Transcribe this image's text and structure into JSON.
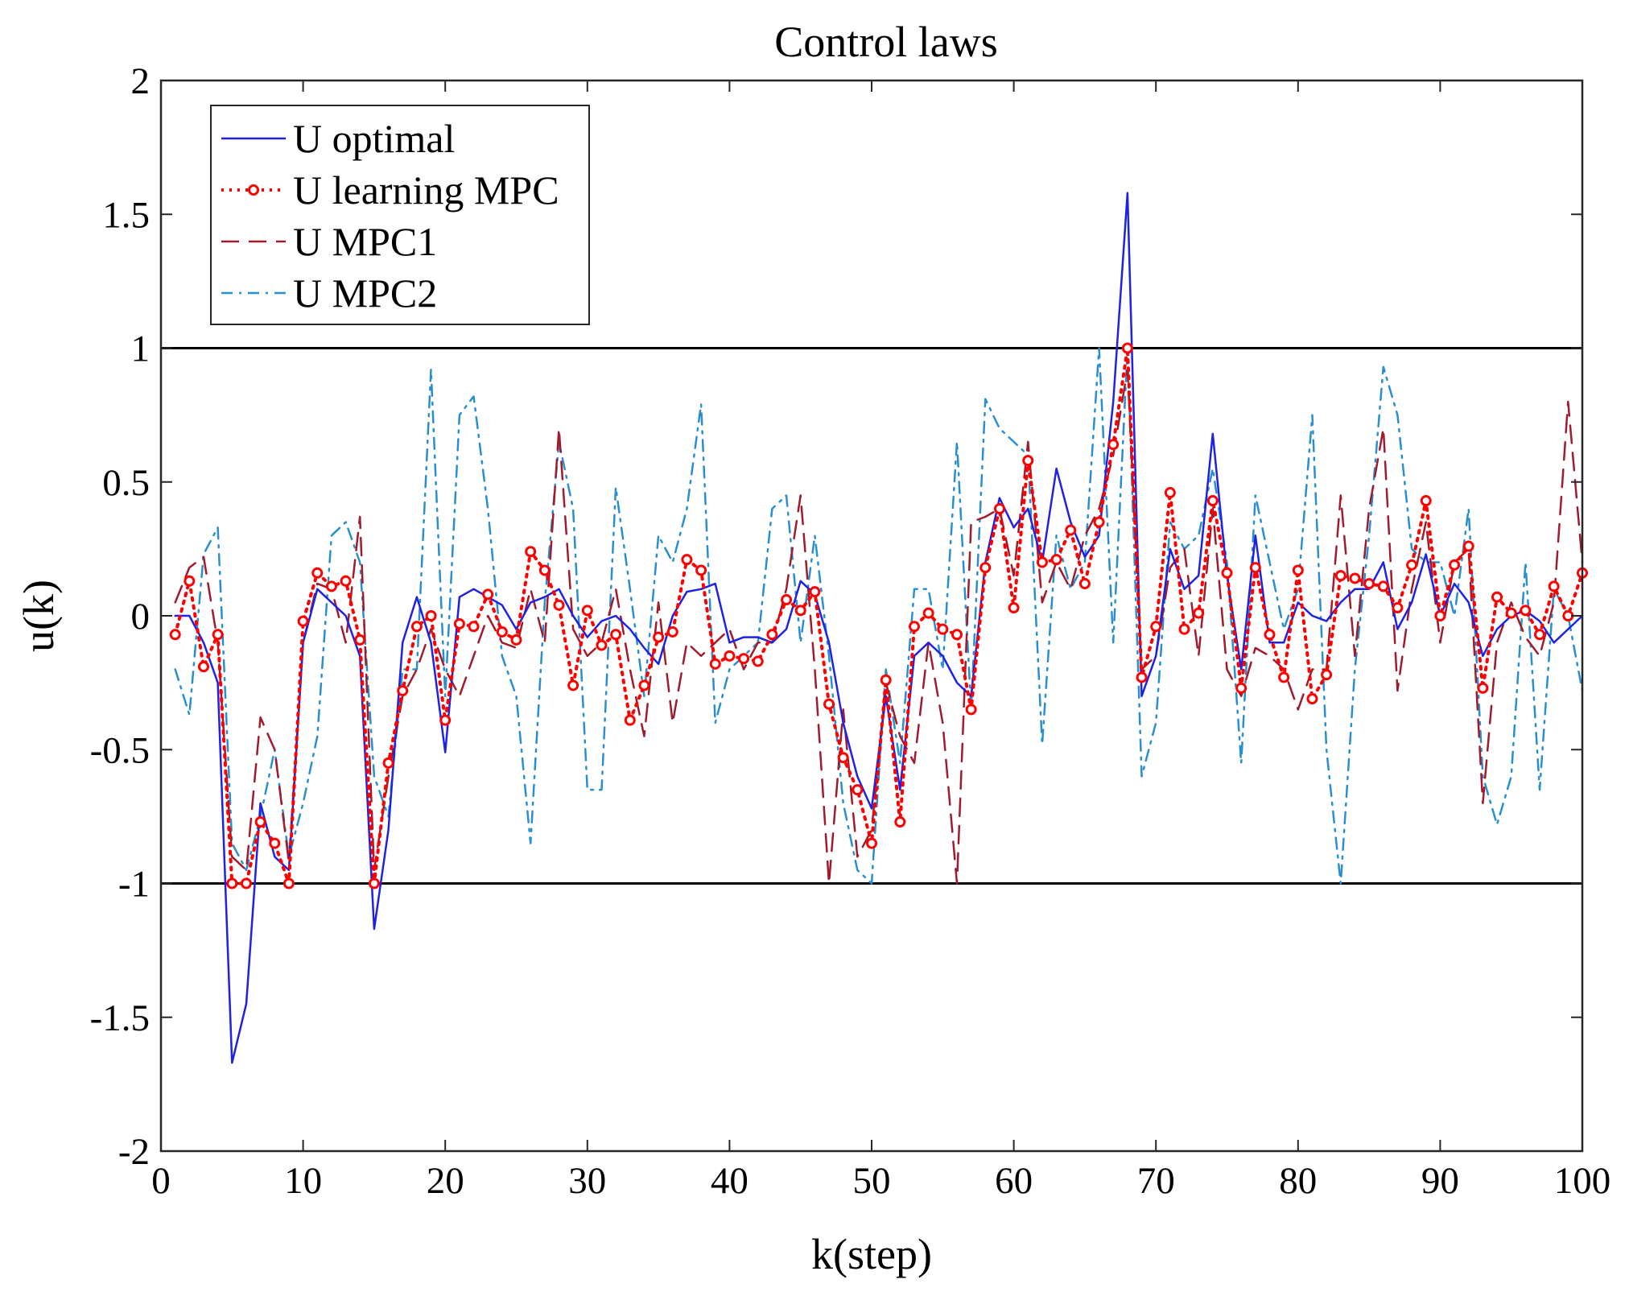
{
  "chart_data": {
    "type": "line",
    "title": "Control laws",
    "xlabel": "k(step)",
    "ylabel": "u(k)",
    "xlim": [
      0,
      100
    ],
    "ylim": [
      -2,
      2
    ],
    "xticks": [
      "0",
      "10",
      "20",
      "30",
      "40",
      "50",
      "60",
      "70",
      "80",
      "90",
      "100"
    ],
    "yticks": [
      "2",
      "1.5",
      "1",
      "0.5",
      "0",
      "-0.5",
      "-1",
      "-1.5",
      "-2"
    ],
    "legend_position": "top-left",
    "reference_lines": [
      {
        "name": "upper bound",
        "y": 1,
        "color": "#000000"
      },
      {
        "name": "lower bound",
        "y": -1,
        "color": "#000000"
      }
    ],
    "x": [
      1,
      2,
      3,
      4,
      5,
      6,
      7,
      8,
      9,
      10,
      11,
      12,
      13,
      14,
      15,
      16,
      17,
      18,
      19,
      20,
      21,
      22,
      23,
      24,
      25,
      26,
      27,
      28,
      29,
      30,
      31,
      32,
      33,
      34,
      35,
      36,
      37,
      38,
      39,
      40,
      41,
      42,
      43,
      44,
      45,
      46,
      47,
      48,
      49,
      50,
      51,
      52,
      53,
      54,
      55,
      56,
      57,
      58,
      59,
      60,
      61,
      62,
      63,
      64,
      65,
      66,
      67,
      68,
      69,
      70,
      71,
      72,
      73,
      74,
      75,
      76,
      77,
      78,
      79,
      80,
      81,
      82,
      83,
      84,
      85,
      86,
      87,
      88,
      89,
      90,
      91,
      92,
      93,
      94,
      95,
      96,
      97,
      98,
      99,
      100
    ],
    "series": [
      {
        "name": "U optimal",
        "color": "#1f22e6",
        "style": "solid",
        "values": [
          0.0,
          0.0,
          -0.1,
          -0.25,
          -1.67,
          -1.45,
          -0.7,
          -0.9,
          -0.95,
          -0.1,
          0.1,
          0.05,
          0.0,
          -0.15,
          -1.17,
          -0.8,
          -0.1,
          0.07,
          -0.1,
          -0.51,
          0.07,
          0.1,
          0.07,
          0.04,
          -0.05,
          0.05,
          0.07,
          0.1,
          0.0,
          -0.08,
          -0.02,
          0.0,
          -0.05,
          -0.12,
          -0.18,
          0.0,
          0.09,
          0.1,
          0.12,
          -0.1,
          -0.08,
          -0.08,
          -0.1,
          -0.05,
          0.13,
          0.08,
          -0.1,
          -0.4,
          -0.6,
          -0.72,
          -0.3,
          -0.65,
          -0.15,
          -0.1,
          -0.15,
          -0.25,
          -0.3,
          0.2,
          0.44,
          0.33,
          0.4,
          0.2,
          0.55,
          0.35,
          0.22,
          0.3,
          0.8,
          1.58,
          -0.3,
          -0.15,
          0.25,
          0.1,
          0.15,
          0.68,
          0.15,
          -0.2,
          0.3,
          -0.1,
          -0.1,
          0.05,
          0.0,
          -0.02,
          0.05,
          0.1,
          0.1,
          0.2,
          -0.05,
          0.05,
          0.23,
          0.0,
          0.12,
          0.05,
          -0.15,
          -0.05,
          0.0,
          0.02,
          -0.02,
          -0.1,
          -0.05,
          0.0
        ]
      },
      {
        "name": "U learning MPC",
        "color": "#ff0000",
        "style": "dotted-circle",
        "values": [
          -0.07,
          0.13,
          -0.19,
          -0.07,
          -1.0,
          -1.0,
          -0.77,
          -0.85,
          -1.0,
          -0.02,
          0.16,
          0.11,
          0.13,
          -0.09,
          -1.0,
          -0.55,
          -0.28,
          -0.04,
          0.0,
          -0.39,
          -0.03,
          -0.04,
          0.08,
          -0.06,
          -0.09,
          0.24,
          0.17,
          0.04,
          -0.26,
          0.02,
          -0.11,
          -0.07,
          -0.39,
          -0.26,
          -0.08,
          -0.06,
          0.21,
          0.17,
          -0.18,
          -0.15,
          -0.16,
          -0.17,
          -0.07,
          0.06,
          0.02,
          0.09,
          -0.33,
          -0.53,
          -0.65,
          -0.85,
          -0.24,
          -0.77,
          -0.04,
          0.01,
          -0.05,
          -0.07,
          -0.35,
          0.18,
          0.4,
          0.03,
          0.58,
          0.2,
          0.21,
          0.32,
          0.12,
          0.35,
          0.64,
          1.0,
          -0.23,
          -0.04,
          0.46,
          -0.05,
          0.01,
          0.43,
          0.16,
          -0.27,
          0.18,
          -0.07,
          -0.23,
          0.17,
          -0.31,
          -0.22,
          0.15,
          0.14,
          0.12,
          0.11,
          0.03,
          0.19,
          0.43,
          0.0,
          0.19,
          0.26,
          -0.27,
          0.07,
          0.01,
          0.02,
          -0.07,
          0.11,
          0.0,
          0.16
        ]
      },
      {
        "name": "U MPC1",
        "color": "#a01c2c",
        "style": "dashed",
        "values": [
          0.05,
          0.18,
          0.22,
          -0.1,
          -0.9,
          -0.95,
          -0.38,
          -0.5,
          -0.92,
          -0.1,
          0.12,
          0.1,
          -0.1,
          0.37,
          -0.95,
          -0.6,
          -0.3,
          -0.2,
          -0.05,
          -0.2,
          -0.3,
          -0.15,
          0.0,
          -0.1,
          -0.12,
          0.1,
          -0.1,
          0.7,
          -0.05,
          -0.15,
          -0.1,
          0.1,
          -0.2,
          -0.45,
          0.05,
          -0.4,
          -0.1,
          -0.15,
          -0.1,
          -0.05,
          -0.2,
          -0.1,
          -0.1,
          0.1,
          0.45,
          -0.2,
          -1.0,
          -0.35,
          -0.9,
          -0.8,
          -0.25,
          -0.45,
          -0.55,
          -0.1,
          -0.4,
          -1.0,
          0.35,
          0.37,
          0.4,
          0.15,
          0.65,
          0.05,
          0.2,
          0.1,
          0.3,
          0.4,
          0.6,
          0.92,
          -0.2,
          -0.15,
          0.18,
          0.25,
          -0.15,
          0.4,
          -0.2,
          -0.3,
          -0.12,
          -0.15,
          -0.2,
          -0.35,
          -0.2,
          -0.2,
          0.45,
          -0.15,
          0.4,
          0.7,
          -0.28,
          0.1,
          0.35,
          -0.1,
          0.2,
          0.25,
          -0.7,
          -0.1,
          0.05,
          -0.08,
          -0.15,
          0.05,
          0.8,
          0.2
        ]
      },
      {
        "name": "U MPC2",
        "color": "#2a8fd1",
        "style": "dash-dot",
        "values": [
          -0.2,
          -0.37,
          0.23,
          0.33,
          -0.85,
          -0.95,
          -0.75,
          -0.5,
          -0.9,
          -0.7,
          -0.45,
          0.3,
          0.35,
          0.2,
          -0.6,
          -0.75,
          -0.2,
          -0.2,
          0.92,
          -0.3,
          0.75,
          0.82,
          0.4,
          -0.15,
          -0.3,
          -0.85,
          0.05,
          0.65,
          0.4,
          -0.65,
          -0.65,
          0.48,
          0.1,
          -0.3,
          0.3,
          0.2,
          0.4,
          0.79,
          -0.4,
          -0.2,
          -0.15,
          -0.1,
          0.4,
          0.45,
          -0.1,
          0.3,
          -0.15,
          -0.7,
          -0.95,
          -1.0,
          -0.2,
          -0.55,
          0.1,
          0.1,
          -0.2,
          0.65,
          -0.35,
          0.81,
          0.7,
          0.65,
          0.6,
          -0.48,
          0.3,
          0.1,
          0.2,
          1.0,
          -0.1,
          1.0,
          -0.6,
          -0.4,
          0.35,
          0.25,
          0.3,
          0.55,
          0.2,
          -0.55,
          0.45,
          0.2,
          -0.05,
          0.1,
          0.75,
          -0.5,
          -1.0,
          -0.2,
          0.3,
          0.93,
          0.75,
          0.25,
          0.2,
          0.2,
          0.0,
          0.4,
          -0.6,
          -0.78,
          -0.6,
          0.2,
          -0.65,
          0.1,
          0.0,
          -0.28
        ]
      }
    ]
  }
}
